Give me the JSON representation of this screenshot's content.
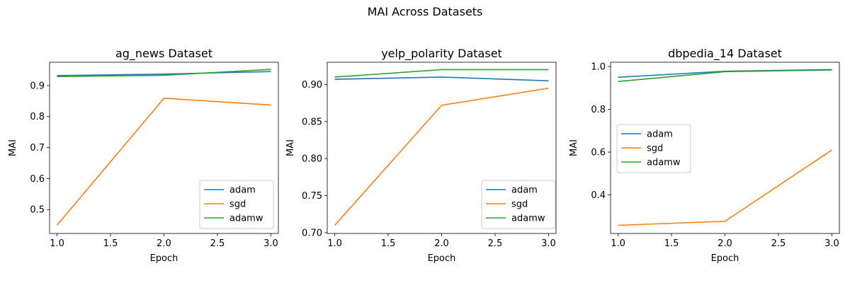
{
  "figure": {
    "suptitle": "MAI Across Datasets"
  },
  "colors": {
    "adam": "#1f77b4",
    "sgd": "#ff7f0e",
    "adamw": "#2ca02c"
  },
  "chart_data": [
    {
      "type": "line",
      "title": "ag_news Dataset",
      "xlabel": "Epoch",
      "ylabel": "MAI",
      "x": [
        1.0,
        2.0,
        3.0
      ],
      "xlim": [
        0.93,
        3.07
      ],
      "ylim": [
        0.423,
        0.975
      ],
      "xticks": [
        1.0,
        1.5,
        2.0,
        2.5,
        3.0
      ],
      "xtick_labels": [
        "1.0",
        "1.5",
        "2.0",
        "2.5",
        "3.0"
      ],
      "yticks": [
        0.5,
        0.6,
        0.7,
        0.8,
        0.9
      ],
      "ytick_labels": [
        "0.5",
        "0.6",
        "0.7",
        "0.8",
        "0.9"
      ],
      "legend": {
        "position": "lower-right",
        "labels": [
          "adam",
          "sgd",
          "adamw"
        ]
      },
      "grid": false,
      "series": [
        {
          "name": "adam",
          "values": [
            0.932,
            0.937,
            0.945
          ]
        },
        {
          "name": "sgd",
          "values": [
            0.45,
            0.859,
            0.837
          ]
        },
        {
          "name": "adamw",
          "values": [
            0.929,
            0.933,
            0.952
          ]
        }
      ]
    },
    {
      "type": "line",
      "title": "yelp_polarity Dataset",
      "xlabel": "Epoch",
      "ylabel": "MAI",
      "x": [
        1.0,
        2.0,
        3.0
      ],
      "xlim": [
        0.93,
        3.07
      ],
      "ylim": [
        0.699,
        0.93
      ],
      "xticks": [
        1.0,
        1.5,
        2.0,
        2.5,
        3.0
      ],
      "xtick_labels": [
        "1.0",
        "1.5",
        "2.0",
        "2.5",
        "3.0"
      ],
      "yticks": [
        0.7,
        0.75,
        0.8,
        0.85,
        0.9
      ],
      "ytick_labels": [
        "0.70",
        "0.75",
        "0.80",
        "0.85",
        "0.90"
      ],
      "legend": {
        "position": "lower-right",
        "labels": [
          "adam",
          "sgd",
          "adamw"
        ]
      },
      "grid": false,
      "series": [
        {
          "name": "adam",
          "values": [
            0.907,
            0.91,
            0.905
          ]
        },
        {
          "name": "sgd",
          "values": [
            0.71,
            0.872,
            0.895
          ]
        },
        {
          "name": "adamw",
          "values": [
            0.91,
            0.92,
            0.92
          ]
        }
      ]
    },
    {
      "type": "line",
      "title": "dbpedia_14 Dataset",
      "xlabel": "Epoch",
      "ylabel": "MAI",
      "x": [
        1.0,
        2.0,
        3.0
      ],
      "xlim": [
        0.93,
        3.07
      ],
      "ylim": [
        0.22,
        1.02
      ],
      "xticks": [
        1.0,
        1.5,
        2.0,
        2.5,
        3.0
      ],
      "xtick_labels": [
        "1.0",
        "1.5",
        "2.0",
        "2.5",
        "3.0"
      ],
      "yticks": [
        0.4,
        0.6,
        0.8,
        1.0
      ],
      "ytick_labels": [
        "0.4",
        "0.6",
        "0.8",
        "1.0"
      ],
      "legend": {
        "position": "center-left",
        "labels": [
          "adam",
          "sgd",
          "adamw"
        ]
      },
      "grid": false,
      "series": [
        {
          "name": "adam",
          "values": [
            0.95,
            0.978,
            0.986
          ]
        },
        {
          "name": "sgd",
          "values": [
            0.258,
            0.277,
            0.61
          ]
        },
        {
          "name": "adamw",
          "values": [
            0.93,
            0.976,
            0.984
          ]
        }
      ]
    }
  ]
}
